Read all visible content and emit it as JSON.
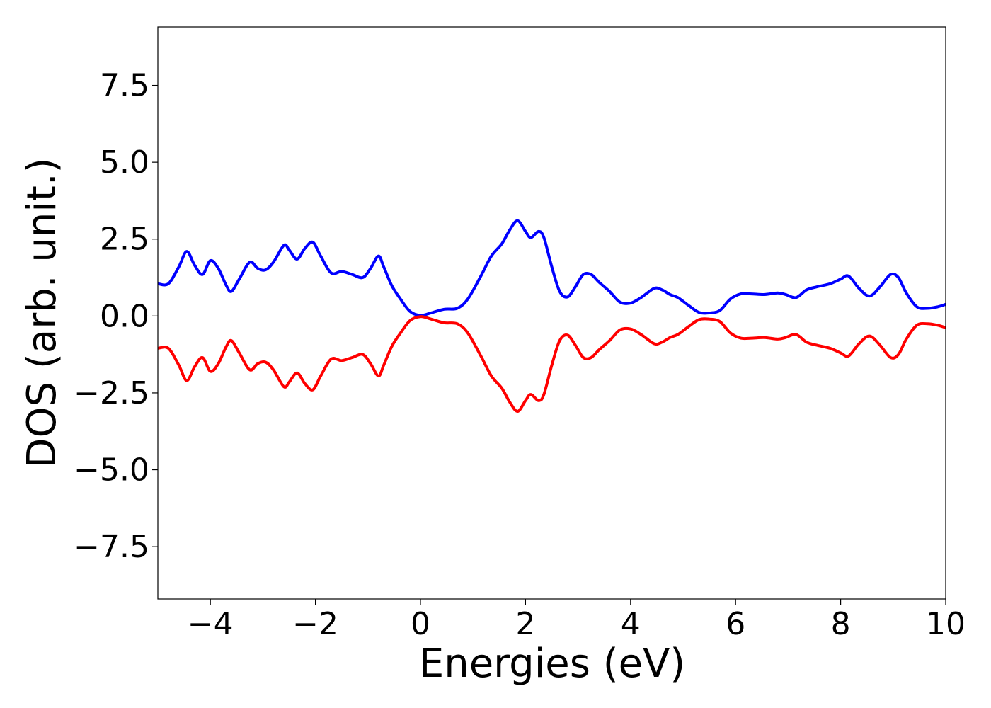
{
  "chart_data": {
    "type": "line",
    "title": "",
    "xlabel": "Energies (eV)",
    "ylabel": "DOS (arb. unit.)",
    "xlim": [
      -5,
      10
    ],
    "ylim": [
      -9.2,
      9.4
    ],
    "grid": false,
    "x_ticks": [
      -4,
      -2,
      0,
      2,
      4,
      6,
      8,
      10
    ],
    "x_tick_labels": [
      "−4",
      "−2",
      "0",
      "2",
      "4",
      "6",
      "8",
      "10"
    ],
    "y_ticks": [
      7.5,
      5.0,
      2.5,
      0.0,
      -2.5,
      -5.0,
      -7.5
    ],
    "y_tick_labels": [
      "7.5",
      "5.0",
      "2.5",
      "0.0",
      "−2.5",
      "−5.0",
      "−7.5"
    ],
    "x": [
      -5.0,
      -4.8,
      -4.6,
      -4.45,
      -4.3,
      -4.15,
      -4.0,
      -3.85,
      -3.7,
      -3.6,
      -3.45,
      -3.25,
      -3.1,
      -2.95,
      -2.8,
      -2.6,
      -2.5,
      -2.35,
      -2.2,
      -2.05,
      -1.9,
      -1.7,
      -1.5,
      -1.3,
      -1.1,
      -0.95,
      -0.8,
      -0.7,
      -0.55,
      -0.4,
      -0.2,
      0.0,
      0.2,
      0.45,
      0.7,
      0.9,
      1.15,
      1.35,
      1.55,
      1.7,
      1.85,
      2.0,
      2.1,
      2.25,
      2.35,
      2.5,
      2.65,
      2.8,
      2.95,
      3.1,
      3.25,
      3.4,
      3.6,
      3.8,
      4.0,
      4.2,
      4.45,
      4.6,
      4.75,
      4.9,
      5.1,
      5.3,
      5.5,
      5.7,
      5.9,
      6.1,
      6.3,
      6.55,
      6.8,
      6.95,
      7.15,
      7.35,
      7.55,
      7.8,
      8.0,
      8.15,
      8.35,
      8.55,
      8.75,
      8.95,
      9.1,
      9.25,
      9.45,
      9.65,
      9.85,
      10.0
    ],
    "series": [
      {
        "color": "#0000ff",
        "values": [
          1.05,
          1.05,
          1.6,
          2.1,
          1.65,
          1.35,
          1.8,
          1.55,
          1.0,
          0.8,
          1.2,
          1.75,
          1.55,
          1.5,
          1.75,
          2.3,
          2.15,
          1.85,
          2.2,
          2.4,
          1.95,
          1.4,
          1.45,
          1.35,
          1.25,
          1.55,
          1.95,
          1.6,
          1.0,
          0.6,
          0.15,
          0.02,
          0.1,
          0.22,
          0.25,
          0.55,
          1.3,
          1.95,
          2.35,
          2.8,
          3.1,
          2.75,
          2.55,
          2.75,
          2.55,
          1.6,
          0.8,
          0.62,
          0.95,
          1.35,
          1.35,
          1.1,
          0.8,
          0.45,
          0.42,
          0.6,
          0.9,
          0.85,
          0.7,
          0.6,
          0.35,
          0.12,
          0.1,
          0.18,
          0.55,
          0.72,
          0.72,
          0.7,
          0.75,
          0.7,
          0.6,
          0.85,
          0.95,
          1.05,
          1.2,
          1.3,
          0.9,
          0.65,
          0.95,
          1.35,
          1.25,
          0.75,
          0.3,
          0.25,
          0.3,
          0.38
        ]
      },
      {
        "color": "#ff0000",
        "values": [
          -1.05,
          -1.05,
          -1.6,
          -2.1,
          -1.65,
          -1.35,
          -1.8,
          -1.55,
          -1.0,
          -0.8,
          -1.2,
          -1.75,
          -1.55,
          -1.5,
          -1.75,
          -2.3,
          -2.15,
          -1.85,
          -2.2,
          -2.4,
          -1.95,
          -1.4,
          -1.45,
          -1.35,
          -1.25,
          -1.55,
          -1.95,
          -1.6,
          -1.0,
          -0.6,
          -0.15,
          -0.02,
          -0.1,
          -0.22,
          -0.25,
          -0.55,
          -1.3,
          -1.95,
          -2.35,
          -2.8,
          -3.1,
          -2.75,
          -2.55,
          -2.75,
          -2.55,
          -1.6,
          -0.8,
          -0.62,
          -0.95,
          -1.35,
          -1.35,
          -1.1,
          -0.8,
          -0.45,
          -0.42,
          -0.6,
          -0.9,
          -0.85,
          -0.7,
          -0.6,
          -0.35,
          -0.12,
          -0.1,
          -0.18,
          -0.55,
          -0.72,
          -0.72,
          -0.7,
          -0.75,
          -0.7,
          -0.6,
          -0.85,
          -0.95,
          -1.05,
          -1.2,
          -1.3,
          -0.9,
          -0.65,
          -0.95,
          -1.35,
          -1.25,
          -0.75,
          -0.3,
          -0.25,
          -0.3,
          -0.38
        ]
      }
    ]
  }
}
